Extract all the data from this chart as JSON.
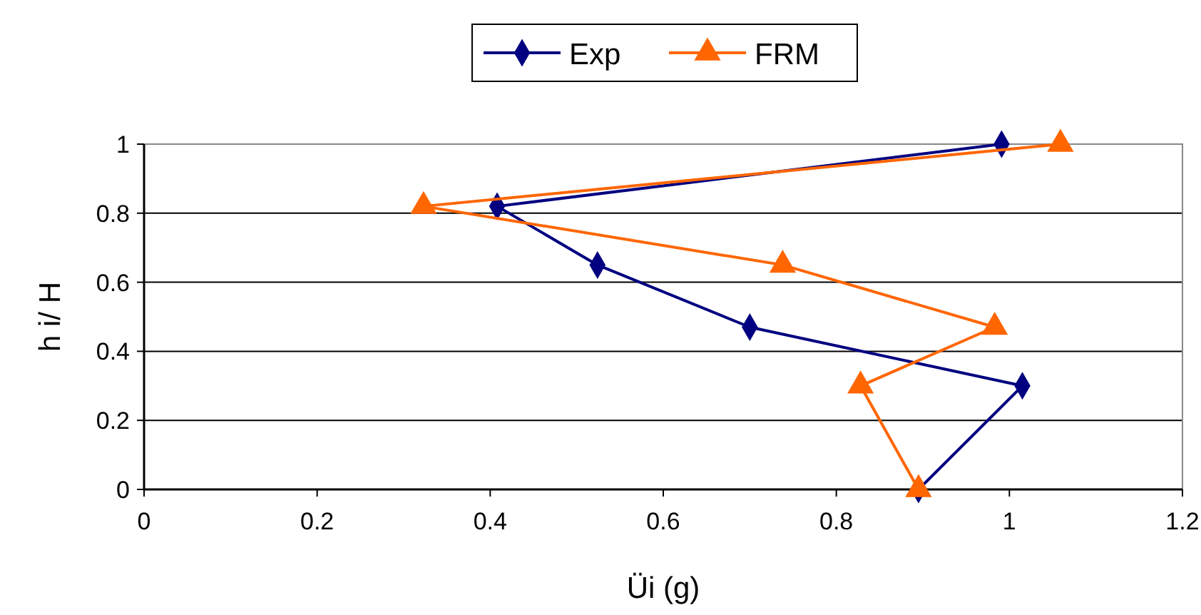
{
  "chart_data": {
    "type": "line",
    "xlabel": "Üi (g)",
    "ylabel": "h i/ H",
    "xlim": [
      0,
      1.2
    ],
    "xticks": [
      0,
      0.2,
      0.4,
      0.6,
      0.8,
      1,
      1.2
    ],
    "ylim": [
      0,
      1
    ],
    "yticks": [
      0,
      0.2,
      0.4,
      0.6,
      0.8,
      1
    ],
    "grid": "y",
    "legend": "top",
    "series": [
      {
        "name": "Exp",
        "color": "#000080",
        "marker": "diamond",
        "x": [
          0.991,
          0.408,
          0.524,
          0.7,
          1.015,
          0.895
        ],
        "values": [
          1,
          0.82,
          0.65,
          0.47,
          0.3,
          0
        ]
      },
      {
        "name": "FRM",
        "color": "#ff6600",
        "marker": "triangle",
        "x": [
          1.059,
          0.323,
          0.738,
          0.983,
          0.828,
          0.895
        ],
        "values": [
          1,
          0.82,
          0.65,
          0.47,
          0.3,
          0
        ]
      }
    ]
  }
}
